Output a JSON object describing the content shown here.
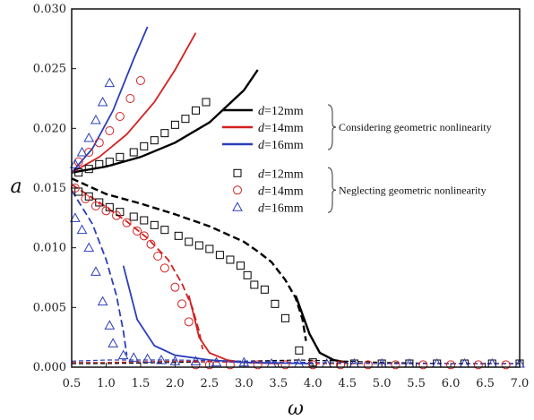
{
  "chart_data": {
    "type": "line",
    "xlabel": "ω",
    "ylabel": "a",
    "xlim": [
      0.5,
      7.0
    ],
    "ylim": [
      0.0,
      0.03
    ],
    "xticks": [
      "0.5",
      "1.0",
      "1.5",
      "2.0",
      "2.5",
      "3.0",
      "3.5",
      "4.0",
      "4.5",
      "5.0",
      "5.5",
      "6.0",
      "6.5",
      "7.0"
    ],
    "yticks": [
      "0.000",
      "0.005",
      "0.010",
      "0.015",
      "0.020",
      "0.025",
      "0.030"
    ],
    "grid": false,
    "legend": {
      "placement": "center-right",
      "groups": [
        {
          "label": "Considering geometric nonlinearity",
          "entries": [
            {
              "prefix": "d",
              "text": "=12mm",
              "color": "#000000",
              "marker": "line"
            },
            {
              "prefix": "d",
              "text": "=14mm",
              "color": "#d42020",
              "marker": "line"
            },
            {
              "prefix": "d",
              "text": "=16mm",
              "color": "#2b3fb8",
              "marker": "line"
            }
          ]
        },
        {
          "label": "Neglecting geometric nonlinearity",
          "entries": [
            {
              "prefix": "d",
              "text": "=12mm",
              "color": "#000000",
              "marker": "square"
            },
            {
              "prefix": "d",
              "text": "=14mm",
              "color": "#d42020",
              "marker": "circle"
            },
            {
              "prefix": "d",
              "text": "=16mm",
              "color": "#2b3fb8",
              "marker": "triangle"
            }
          ]
        }
      ]
    },
    "series": [
      {
        "d": "12mm",
        "color": "#000000",
        "upper_stable": {
          "x": [
            0.5,
            1.0,
            1.5,
            2.0,
            2.5,
            3.0,
            3.2
          ],
          "y": [
            0.0163,
            0.0168,
            0.0176,
            0.0188,
            0.0205,
            0.0232,
            0.0249
          ]
        },
        "lower_branch": {
          "x": [
            0.5,
            1.0,
            1.5,
            2.0,
            2.5,
            3.0,
            3.2,
            3.4,
            3.6,
            3.75,
            3.85,
            3.9
          ],
          "y": [
            0.0158,
            0.0145,
            0.0137,
            0.0128,
            0.0118,
            0.0105,
            0.0097,
            0.0088,
            0.0073,
            0.0058,
            0.004,
            0.0022
          ]
        },
        "lower_solid": {
          "x": [
            3.75,
            3.95,
            4.1,
            4.3,
            4.5
          ],
          "y": [
            0.006,
            0.0028,
            0.0012,
            0.0006,
            0.0004
          ]
        },
        "bottom_curve": {
          "x": [
            0.5,
            1.0,
            2.0,
            3.0,
            3.8,
            4.5,
            5.0,
            6.0,
            7.0
          ],
          "y": [
            0.0003,
            0.0003,
            0.0004,
            0.0005,
            0.0006,
            0.0005,
            0.0004,
            0.0003,
            0.0003
          ]
        },
        "markers": {
          "x": [
            0.6,
            0.75,
            0.9,
            1.05,
            1.2,
            1.4,
            1.55,
            1.7,
            1.85,
            2.05,
            2.2,
            2.35,
            2.5,
            2.65,
            2.8,
            2.95,
            3.05,
            3.15,
            3.3,
            3.45,
            3.6,
            3.8,
            4.0,
            4.3,
            4.6,
            5.0,
            5.4,
            5.8,
            6.2,
            6.6,
            7.0
          ],
          "y": [
            0.0147,
            0.0143,
            0.0138,
            0.0134,
            0.013,
            0.0126,
            0.0123,
            0.0119,
            0.0115,
            0.011,
            0.0105,
            0.0102,
            0.0099,
            0.0094,
            0.009,
            0.0085,
            0.0077,
            0.0069,
            0.0065,
            0.0053,
            0.0041,
            0.0014,
            0.0004,
            0.0003,
            0.0003,
            0.0003,
            0.0003,
            0.0003,
            0.0003,
            0.0003,
            0.0003
          ]
        },
        "markers_upper": {
          "x": [
            0.6,
            0.75,
            0.9,
            1.05,
            1.2,
            1.4,
            1.55,
            1.7,
            1.85,
            2.0,
            2.15,
            2.3,
            2.45
          ],
          "y": [
            0.0163,
            0.0166,
            0.017,
            0.0172,
            0.0176,
            0.018,
            0.0185,
            0.019,
            0.0196,
            0.0203,
            0.0208,
            0.0215,
            0.0222
          ]
        }
      },
      {
        "d": "14mm",
        "color": "#d42020",
        "upper_stable": {
          "x": [
            0.5,
            0.9,
            1.3,
            1.7,
            2.0,
            2.3
          ],
          "y": [
            0.0163,
            0.0176,
            0.0195,
            0.0222,
            0.0249,
            0.028
          ]
        },
        "lower_branch": {
          "x": [
            0.5,
            0.9,
            1.3,
            1.6,
            1.9,
            2.1,
            2.25,
            2.35,
            2.4
          ],
          "y": [
            0.0153,
            0.0138,
            0.0122,
            0.0108,
            0.009,
            0.007,
            0.005,
            0.003,
            0.0015
          ]
        },
        "lower_solid": {
          "x": [
            2.2,
            2.35,
            2.5,
            2.75,
            3.0,
            3.5
          ],
          "y": [
            0.006,
            0.0025,
            0.0012,
            0.0006,
            0.0004,
            0.0003
          ]
        },
        "bottom_curve": {
          "x": [
            0.5,
            1.0,
            2.0,
            3.0,
            4.0,
            5.0,
            6.0,
            7.0
          ],
          "y": [
            0.0004,
            0.0004,
            0.0005,
            0.0004,
            0.0003,
            0.0003,
            0.0003,
            0.0003
          ]
        },
        "markers": {
          "x": [
            0.55,
            0.7,
            0.85,
            1.0,
            1.15,
            1.3,
            1.45,
            1.55,
            1.65,
            1.75,
            1.85,
            2.0,
            2.1,
            2.2,
            2.3,
            2.5,
            2.8,
            3.2,
            3.6,
            4.0,
            4.4,
            4.8,
            5.2,
            5.6,
            6.0,
            6.4,
            6.8
          ],
          "y": [
            0.015,
            0.0141,
            0.0135,
            0.0131,
            0.0127,
            0.0121,
            0.0114,
            0.011,
            0.0103,
            0.0093,
            0.0083,
            0.0067,
            0.0053,
            0.0038,
            0.0002,
            0.0002,
            0.0002,
            0.0002,
            0.0002,
            0.0002,
            0.0002,
            0.0002,
            0.0002,
            0.0002,
            0.0002,
            0.0002,
            0.0002
          ]
        },
        "markers_upper": {
          "x": [
            0.6,
            0.75,
            0.9,
            1.05,
            1.2,
            1.35,
            1.5
          ],
          "y": [
            0.0172,
            0.018,
            0.0188,
            0.0198,
            0.021,
            0.0225,
            0.024
          ]
        }
      },
      {
        "d": "16mm",
        "color": "#2b3fb8",
        "upper_stable": {
          "x": [
            0.5,
            0.8,
            1.1,
            1.4,
            1.6
          ],
          "y": [
            0.0163,
            0.0183,
            0.0215,
            0.0258,
            0.0285
          ]
        },
        "lower_branch": {
          "x": [
            0.5,
            0.8,
            1.0,
            1.15,
            1.25,
            1.3
          ],
          "y": [
            0.0148,
            0.012,
            0.009,
            0.006,
            0.003,
            0.001
          ]
        },
        "lower_solid": {
          "x": [
            1.25,
            1.45,
            1.7,
            2.0,
            2.5,
            3.0,
            4.0
          ],
          "y": [
            0.0085,
            0.004,
            0.0018,
            0.001,
            0.0006,
            0.0004,
            0.0003
          ]
        },
        "bottom_curve": {
          "x": [
            0.5,
            1.0,
            2.0,
            3.0,
            4.0,
            5.0,
            6.0,
            7.0
          ],
          "y": [
            0.0005,
            0.0006,
            0.0006,
            0.0005,
            0.0004,
            0.0003,
            0.0003,
            0.0003
          ]
        },
        "markers": {
          "x": [
            0.55,
            0.65,
            0.75,
            0.85,
            0.95,
            1.05,
            1.1,
            1.25,
            1.4,
            1.6,
            1.8,
            2.0,
            2.3,
            2.6,
            3.0,
            3.4,
            3.8,
            4.2,
            4.6,
            5.0,
            5.4,
            5.8,
            6.2,
            6.6,
            7.0
          ],
          "y": [
            0.0125,
            0.0115,
            0.01,
            0.008,
            0.0055,
            0.0035,
            0.002,
            0.001,
            0.0008,
            0.0007,
            0.0006,
            0.0005,
            0.0005,
            0.0004,
            0.0004,
            0.0003,
            0.0003,
            0.0003,
            0.0003,
            0.0003,
            0.0003,
            0.0003,
            0.0003,
            0.0003,
            0.0003
          ]
        },
        "markers_upper": {
          "x": [
            0.55,
            0.65,
            0.75,
            0.85,
            0.95,
            1.05
          ],
          "y": [
            0.017,
            0.018,
            0.0192,
            0.0207,
            0.0222,
            0.0238
          ]
        }
      }
    ]
  }
}
